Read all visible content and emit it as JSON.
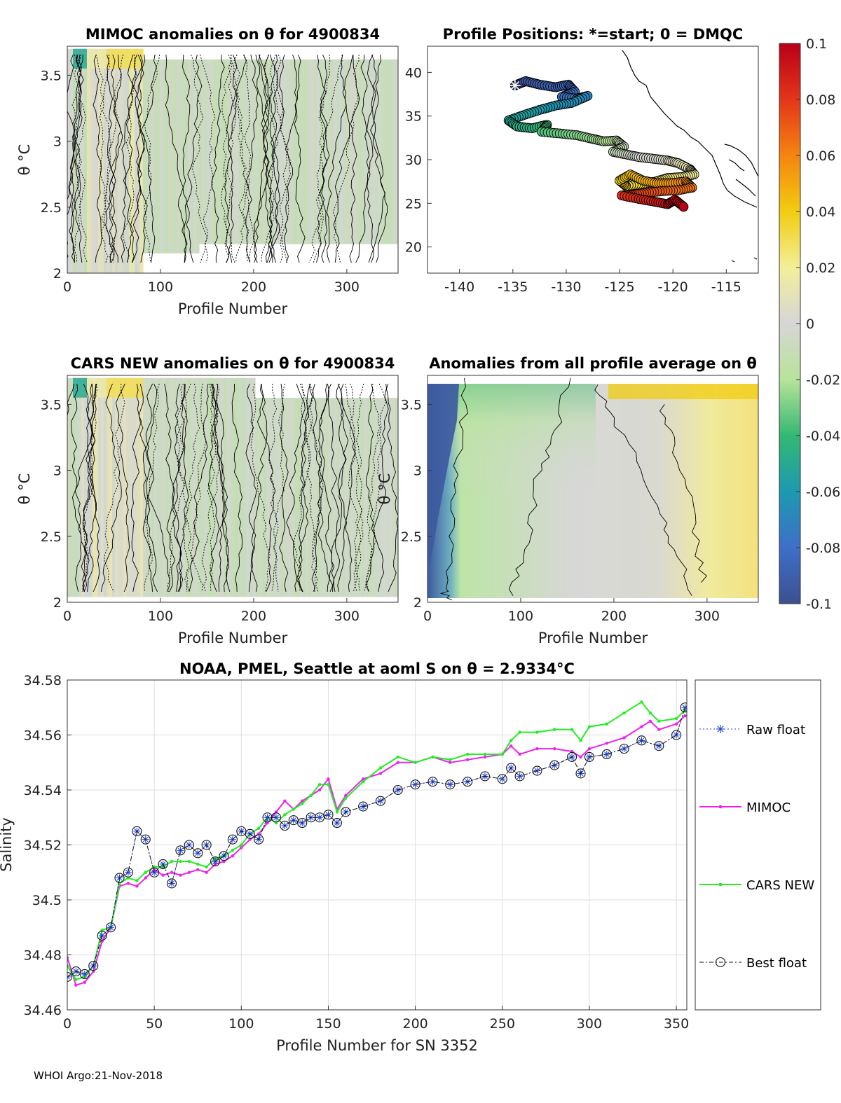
{
  "footer": "WHOI Argo:21-Nov-2018",
  "chart_data": [
    {
      "id": "mimoc",
      "type": "heatmap",
      "title": "MIMOC anomalies on θ  for 4900834",
      "xlabel": "Profile Number",
      "ylabel": "θ °C",
      "xlim": [
        0,
        355
      ],
      "ylim": [
        2,
        3.72
      ],
      "xticks": [
        "0",
        "100",
        "200",
        "300"
      ],
      "yticks": [
        "2",
        "2.5",
        "3",
        "3.5"
      ]
    },
    {
      "id": "positions",
      "type": "scatter",
      "title": "Profile Positions: *=start; 0 = DMQC",
      "xlim": [
        -143,
        -112
      ],
      "ylim": [
        17,
        43
      ],
      "xticks": [
        "-140",
        "-135",
        "-130",
        "-125",
        "-120",
        "-115"
      ],
      "yticks": [
        "20",
        "25",
        "30",
        "35",
        "40"
      ],
      "track": [
        [
          -134.8,
          38.5
        ],
        [
          -133.8,
          39.0
        ],
        [
          -132.5,
          38.6
        ],
        [
          -131.0,
          38.3
        ],
        [
          -129.8,
          38.6
        ],
        [
          -129.2,
          37.8
        ],
        [
          -130.4,
          37.2
        ],
        [
          -129.0,
          37.0
        ],
        [
          -128.0,
          37.3
        ],
        [
          -129.5,
          36.5
        ],
        [
          -131.0,
          36.2
        ],
        [
          -132.5,
          35.7
        ],
        [
          -134.0,
          35.1
        ],
        [
          -135.4,
          34.5
        ],
        [
          -134.6,
          33.8
        ],
        [
          -133.2,
          33.6
        ],
        [
          -131.8,
          34.0
        ],
        [
          -132.3,
          33.2
        ],
        [
          -130.6,
          33.0
        ],
        [
          -129.0,
          32.8
        ],
        [
          -127.6,
          32.4
        ],
        [
          -126.5,
          32.1
        ],
        [
          -125.3,
          32.2
        ],
        [
          -124.6,
          31.5
        ],
        [
          -125.6,
          30.9
        ],
        [
          -124.4,
          30.6
        ],
        [
          -123.2,
          30.3
        ],
        [
          -121.8,
          30.1
        ],
        [
          -120.5,
          29.9
        ],
        [
          -119.5,
          29.6
        ],
        [
          -118.4,
          28.9
        ],
        [
          -118.0,
          28.3
        ],
        [
          -119.2,
          28.0
        ],
        [
          -120.5,
          27.9
        ],
        [
          -121.6,
          27.5
        ],
        [
          -123.0,
          27.2
        ],
        [
          -124.4,
          27.0
        ],
        [
          -125.0,
          27.6
        ],
        [
          -124.0,
          28.3
        ],
        [
          -122.8,
          27.6
        ],
        [
          -121.5,
          27.3
        ],
        [
          -120.2,
          27.3
        ],
        [
          -118.8,
          27.5
        ],
        [
          -118.2,
          26.8
        ],
        [
          -119.5,
          26.5
        ],
        [
          -121.0,
          26.4
        ],
        [
          -122.5,
          26.2
        ],
        [
          -123.8,
          26.0
        ],
        [
          -124.8,
          25.9
        ],
        [
          -123.2,
          25.5
        ],
        [
          -121.8,
          25.2
        ],
        [
          -120.5,
          24.9
        ],
        [
          -119.8,
          25.4
        ],
        [
          -119.0,
          24.6
        ]
      ]
    },
    {
      "id": "cars",
      "type": "heatmap",
      "title": "CARS NEW anomalies on θ for 4900834",
      "xlabel": "Profile Number",
      "ylabel": "θ °C",
      "xlim": [
        0,
        355
      ],
      "ylim": [
        2,
        3.72
      ],
      "xticks": [
        "0",
        "100",
        "200",
        "300"
      ],
      "yticks": [
        "2",
        "2.5",
        "3",
        "3.5"
      ]
    },
    {
      "id": "allavg",
      "type": "heatmap",
      "title": "Anomalies from all profile average on θ",
      "xlabel": "Profile Number",
      "ylabel": "θ °C",
      "xlim": [
        0,
        355
      ],
      "ylim": [
        2,
        3.72
      ],
      "xticks": [
        "0",
        "100",
        "200",
        "300"
      ],
      "yticks": [
        "2",
        "2.5",
        "3",
        "3.5"
      ]
    },
    {
      "id": "colorbar",
      "type": "heatmap",
      "range": [
        -0.1,
        0.1
      ],
      "ticks": [
        "0.1",
        "0.08",
        "0.06",
        "0.04",
        "0.02",
        "0",
        "-0.02",
        "-0.04",
        "-0.06",
        "-0.08",
        "-0.1"
      ]
    },
    {
      "id": "salinity",
      "type": "line",
      "title": "NOAA, PMEL, Seattle at aoml S on θ = 2.9334°C",
      "xlabel": "Profile Number for SN 3352",
      "ylabel": "Salinity",
      "xlim": [
        0,
        356
      ],
      "ylim": [
        34.46,
        34.58
      ],
      "grid": true,
      "legend_placement": "outside-right",
      "xticks": [
        "0",
        "50",
        "100",
        "150",
        "200",
        "250",
        "300",
        "350"
      ],
      "yticks": [
        "34.46",
        "34.48",
        "34.5",
        "34.52",
        "34.54",
        "34.56",
        "34.58"
      ],
      "series": [
        {
          "name": "Raw float",
          "x": [
            0,
            5,
            10,
            15,
            20,
            25,
            30,
            35,
            40,
            45,
            50,
            55,
            60,
            65,
            70,
            75,
            80,
            85,
            90,
            95,
            100,
            105,
            110,
            115,
            120,
            125,
            130,
            135,
            140,
            145,
            150,
            155,
            160,
            170,
            180,
            190,
            200,
            210,
            220,
            230,
            240,
            250,
            255,
            260,
            270,
            280,
            290,
            295,
            300,
            310,
            320,
            330,
            340,
            350,
            355
          ],
          "y": [
            34.472,
            34.474,
            34.473,
            34.476,
            34.487,
            34.49,
            34.508,
            34.51,
            34.525,
            34.522,
            34.51,
            34.513,
            34.506,
            34.518,
            34.52,
            34.517,
            34.52,
            34.514,
            34.516,
            34.522,
            34.525,
            34.524,
            34.522,
            34.53,
            34.53,
            34.527,
            34.529,
            34.528,
            34.53,
            34.53,
            34.531,
            34.528,
            34.532,
            34.534,
            34.536,
            34.54,
            34.542,
            34.543,
            34.542,
            34.543,
            34.545,
            34.544,
            34.548,
            34.545,
            34.547,
            34.549,
            34.552,
            34.546,
            34.552,
            34.553,
            34.555,
            34.558,
            34.556,
            34.56,
            34.57
          ]
        },
        {
          "name": "MIMOC",
          "x": [
            0,
            5,
            10,
            15,
            20,
            25,
            30,
            35,
            40,
            45,
            50,
            55,
            60,
            65,
            70,
            75,
            80,
            85,
            90,
            95,
            100,
            105,
            110,
            115,
            120,
            125,
            130,
            135,
            140,
            145,
            150,
            155,
            160,
            170,
            180,
            190,
            200,
            210,
            220,
            230,
            240,
            250,
            255,
            260,
            270,
            280,
            290,
            295,
            300,
            310,
            320,
            330,
            335,
            340,
            350,
            355
          ],
          "y": [
            34.479,
            34.469,
            34.47,
            34.474,
            34.485,
            34.49,
            34.505,
            34.506,
            34.505,
            34.508,
            34.511,
            34.509,
            34.51,
            34.509,
            34.51,
            34.511,
            34.51,
            34.513,
            34.514,
            34.516,
            34.519,
            34.522,
            34.524,
            34.528,
            34.532,
            34.536,
            34.533,
            34.536,
            34.538,
            34.54,
            34.544,
            34.533,
            34.538,
            34.544,
            34.546,
            34.55,
            34.55,
            34.552,
            34.55,
            34.551,
            34.552,
            34.553,
            34.556,
            34.553,
            34.555,
            34.555,
            34.554,
            34.552,
            34.555,
            34.557,
            34.559,
            34.563,
            34.565,
            34.562,
            34.564,
            34.567
          ]
        },
        {
          "name": "CARS NEW",
          "x": [
            0,
            5,
            10,
            15,
            20,
            25,
            30,
            35,
            40,
            45,
            50,
            55,
            60,
            65,
            70,
            75,
            80,
            85,
            90,
            95,
            100,
            105,
            110,
            115,
            120,
            125,
            130,
            135,
            140,
            145,
            150,
            155,
            160,
            170,
            180,
            190,
            200,
            210,
            220,
            230,
            240,
            250,
            255,
            260,
            270,
            280,
            290,
            295,
            300,
            310,
            320,
            330,
            335,
            340,
            350,
            355
          ],
          "y": [
            34.476,
            34.471,
            34.472,
            34.476,
            34.489,
            34.49,
            34.506,
            34.508,
            34.507,
            34.51,
            34.512,
            34.512,
            34.514,
            34.514,
            34.514,
            34.513,
            34.512,
            34.515,
            34.516,
            34.518,
            34.52,
            34.524,
            34.526,
            34.53,
            34.528,
            34.531,
            34.533,
            34.535,
            34.538,
            34.542,
            34.542,
            34.532,
            34.537,
            34.543,
            34.548,
            34.552,
            34.55,
            34.552,
            34.551,
            34.553,
            34.553,
            34.553,
            34.558,
            34.561,
            34.561,
            34.562,
            34.562,
            34.558,
            34.563,
            34.564,
            34.568,
            34.572,
            34.568,
            34.565,
            34.566,
            34.569
          ]
        },
        {
          "name": "Best float",
          "x": [
            0,
            5,
            10,
            15,
            20,
            25,
            30,
            35,
            40,
            45,
            50,
            55,
            60,
            65,
            70,
            75,
            80,
            85,
            90,
            95,
            100,
            105,
            110,
            115,
            120,
            125,
            130,
            135,
            140,
            145,
            150,
            155,
            160,
            170,
            180,
            190,
            200,
            210,
            220,
            230,
            240,
            250,
            255,
            260,
            270,
            280,
            290,
            295,
            300,
            310,
            320,
            330,
            340,
            350,
            355
          ],
          "y": [
            34.472,
            34.474,
            34.473,
            34.476,
            34.487,
            34.49,
            34.508,
            34.51,
            34.525,
            34.522,
            34.51,
            34.513,
            34.506,
            34.518,
            34.52,
            34.517,
            34.52,
            34.514,
            34.516,
            34.522,
            34.525,
            34.524,
            34.522,
            34.53,
            34.53,
            34.527,
            34.529,
            34.528,
            34.53,
            34.53,
            34.531,
            34.528,
            34.532,
            34.534,
            34.536,
            34.54,
            34.542,
            34.543,
            34.542,
            34.543,
            34.545,
            34.544,
            34.548,
            34.545,
            34.547,
            34.549,
            34.552,
            34.546,
            34.552,
            34.553,
            34.555,
            34.558,
            34.556,
            34.56,
            34.57
          ]
        }
      ]
    }
  ]
}
